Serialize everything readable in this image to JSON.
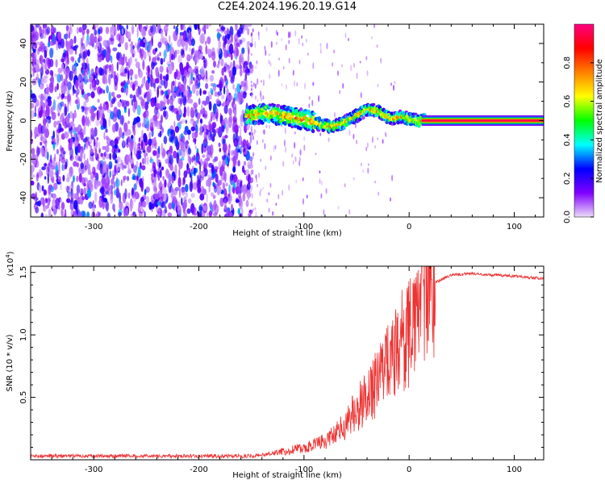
{
  "chart_title": "C2E4.2024.196.20.19.G14",
  "chart_data": [
    {
      "type": "heatmap",
      "title": "C2E4.2024.196.20.19.G14",
      "xlabel": "Height of straight line (km)",
      "ylabel": "Frequency (Hz)",
      "xlim": [
        -360,
        128
      ],
      "ylim": [
        -50,
        50
      ],
      "xticks": [
        -300,
        -200,
        -100,
        0,
        100
      ],
      "xtick_labels": [
        "-300",
        "-200",
        "-100",
        "0",
        "100"
      ],
      "yticks": [
        -40,
        -20,
        0,
        20,
        40
      ],
      "ytick_labels": [
        "-40",
        "-20",
        "0",
        "20",
        "40"
      ],
      "ridge": {
        "x": [
          -155,
          -145,
          -135,
          -125,
          -115,
          -105,
          -95,
          -85,
          -75,
          -65,
          -55,
          -45,
          -38,
          -30,
          -22,
          -15,
          -8,
          0,
          8,
          15,
          128
        ],
        "y": [
          2,
          3,
          4,
          3,
          2,
          1,
          0,
          -2,
          -3,
          -2,
          1,
          4,
          6,
          5,
          2,
          1,
          2,
          1,
          0,
          0,
          0
        ]
      },
      "noise_region_x": [
        -360,
        -150
      ]
    },
    {
      "type": "colorbar",
      "label": "Normalized spectral amplitude",
      "range": [
        0.0,
        1.0
      ],
      "ticks": [
        0.0,
        0.2,
        0.4,
        0.6,
        0.8
      ],
      "tick_labels": [
        "0.0",
        "0.2",
        "0.4",
        "0.6",
        "0.8"
      ],
      "colors": [
        "#ecdcf7",
        "#8000ff",
        "#0000ff",
        "#00ffff",
        "#00ff00",
        "#ffff00",
        "#ff8000",
        "#ff0000",
        "#ff0080"
      ]
    },
    {
      "type": "line",
      "xlabel": "Height of straight line (km)",
      "ylabel": "SNR (10 * v/v)",
      "scale_label": "(x10",
      "scale_exponent": "4",
      "scale_suffix": ")",
      "xlim": [
        -360,
        128
      ],
      "ylim": [
        0,
        1.55
      ],
      "xticks": [
        -300,
        -200,
        -100,
        0,
        100
      ],
      "xtick_labels": [
        "-300",
        "-200",
        "-100",
        "0",
        "100"
      ],
      "yticks": [
        0.5,
        1.0,
        1.5
      ],
      "ytick_labels": [
        "0.5",
        "1.0",
        "1.5"
      ],
      "series": [
        {
          "name": "SNR",
          "color": "#ee3333",
          "x": [
            -360,
            -300,
            -250,
            -200,
            -150,
            -130,
            -110,
            -100,
            -90,
            -80,
            -70,
            -60,
            -50,
            -40,
            -30,
            -20,
            -10,
            0,
            8,
            15,
            25,
            40,
            60,
            80,
            100,
            128
          ],
          "y": [
            0.03,
            0.03,
            0.03,
            0.03,
            0.03,
            0.05,
            0.08,
            0.1,
            0.12,
            0.15,
            0.2,
            0.3,
            0.4,
            0.5,
            0.62,
            0.75,
            0.9,
            1.05,
            1.2,
            1.32,
            1.42,
            1.48,
            1.49,
            1.48,
            1.47,
            1.45
          ]
        }
      ]
    }
  ]
}
